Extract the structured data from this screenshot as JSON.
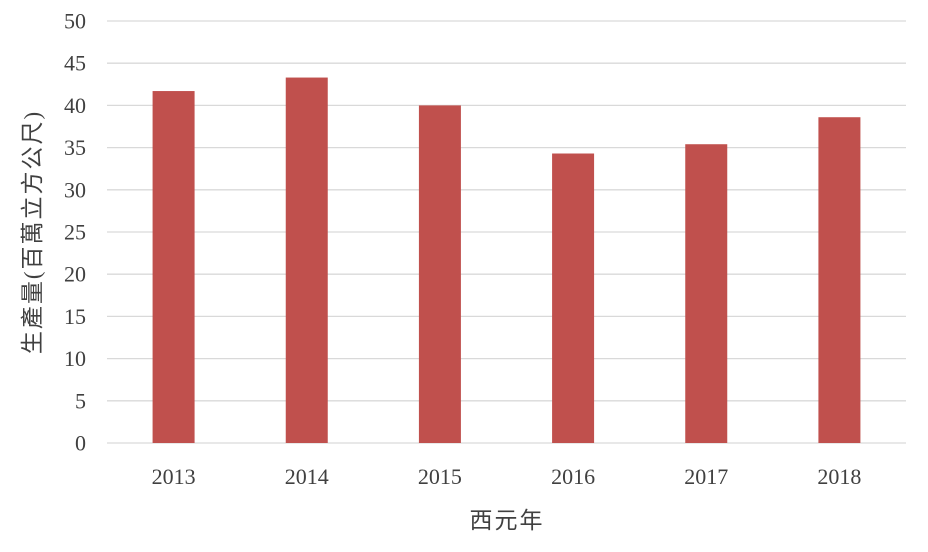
{
  "chart_data": {
    "type": "bar",
    "title": "",
    "xlabel": "西元年",
    "ylabel": "生產量(百萬立方公尺)",
    "categories": [
      "2013",
      "2014",
      "2015",
      "2016",
      "2017",
      "2018"
    ],
    "values": [
      41.7,
      43.3,
      40.0,
      34.3,
      35.4,
      38.6
    ],
    "ylim": [
      0,
      50
    ],
    "yticks": [
      0,
      5,
      10,
      15,
      20,
      25,
      30,
      35,
      40,
      45,
      50
    ],
    "grid": true,
    "legend": "none",
    "colors": {
      "bar": "#C0504D",
      "grid": "#D9D9D9",
      "text": "#404040"
    }
  }
}
